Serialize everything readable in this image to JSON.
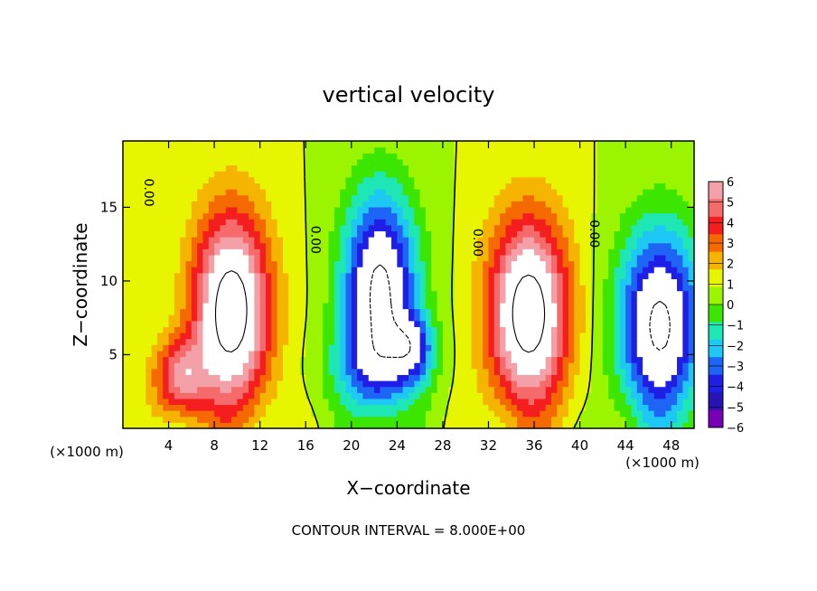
{
  "chart_data": {
    "type": "heatmap",
    "title": "vertical velocity",
    "xlabel": "X−coordinate",
    "ylabel": "Z−coordinate",
    "x_unit": "(×1000 m)",
    "y_unit": "(×1000 m)",
    "xlim": [
      0,
      50
    ],
    "ylim": [
      0,
      19.5
    ],
    "x_ticks": [
      4,
      8,
      12,
      16,
      20,
      24,
      28,
      32,
      36,
      40,
      44,
      48
    ],
    "x_tick_labels": [
      "4",
      "8",
      "12",
      "16",
      "20",
      "24",
      "28",
      "32",
      "36",
      "40",
      "44",
      "48"
    ],
    "y_ticks": [
      5,
      10,
      15
    ],
    "y_tick_labels": [
      "5",
      "10",
      "15"
    ],
    "colorbar": {
      "levels": [
        6,
        5,
        4,
        3,
        2,
        1,
        0,
        -1,
        -2,
        -3,
        -4,
        -5,
        -6
      ],
      "labels": [
        "6",
        "5",
        "4",
        "3",
        "2",
        "1",
        "0",
        "−1",
        "−2",
        "−3",
        "−4",
        "−5",
        "−6"
      ],
      "colors": [
        "#f4a0a8",
        "#f56a6a",
        "#f51e1e",
        "#f56a00",
        "#f5b400",
        "#e8f500",
        "#9cf500",
        "#3ce600",
        "#1ee6b4",
        "#1ec8f5",
        "#1e64f5",
        "#1e1ee6",
        "#2814b4",
        "#7800b4"
      ]
    },
    "plumes": [
      {
        "x": 9.5,
        "z": 8.0,
        "amp": 9.5,
        "sx": 3.3,
        "sz": 6.5
      },
      {
        "x": 35.5,
        "z": 7.8,
        "amp": 9.5,
        "sx": 3.4,
        "sz": 6.3
      },
      {
        "x": 5.0,
        "z": 3.5,
        "amp": 5.0,
        "sx": 2.3,
        "sz": 2.6
      },
      {
        "x": 22.5,
        "z": 9.5,
        "amp": -8.5,
        "sx": 3.2,
        "sz": 6.5
      },
      {
        "x": 47.0,
        "z": 7.0,
        "amp": -8.5,
        "sx": 3.6,
        "sz": 6.5
      },
      {
        "x": 22.0,
        "z": 4.0,
        "amp": -3.0,
        "sx": 4.0,
        "sz": 3.0
      },
      {
        "x": 25.5,
        "z": 5.5,
        "amp": -4.0,
        "sx": 1.8,
        "sz": 2.2
      }
    ],
    "contour_labels": [
      {
        "text": "0.00",
        "x": 2.2,
        "z": 16.0,
        "rotate": 90
      },
      {
        "text": "0.00",
        "x": 16.8,
        "z": 12.8,
        "rotate": 90
      },
      {
        "text": "0.00",
        "x": 31.0,
        "z": 12.6,
        "rotate": 90
      },
      {
        "text": "0.00",
        "x": 41.2,
        "z": 13.2,
        "rotate": 90
      }
    ],
    "contour_interval_text": "CONTOUR INTERVAL = 8.000E+00"
  }
}
